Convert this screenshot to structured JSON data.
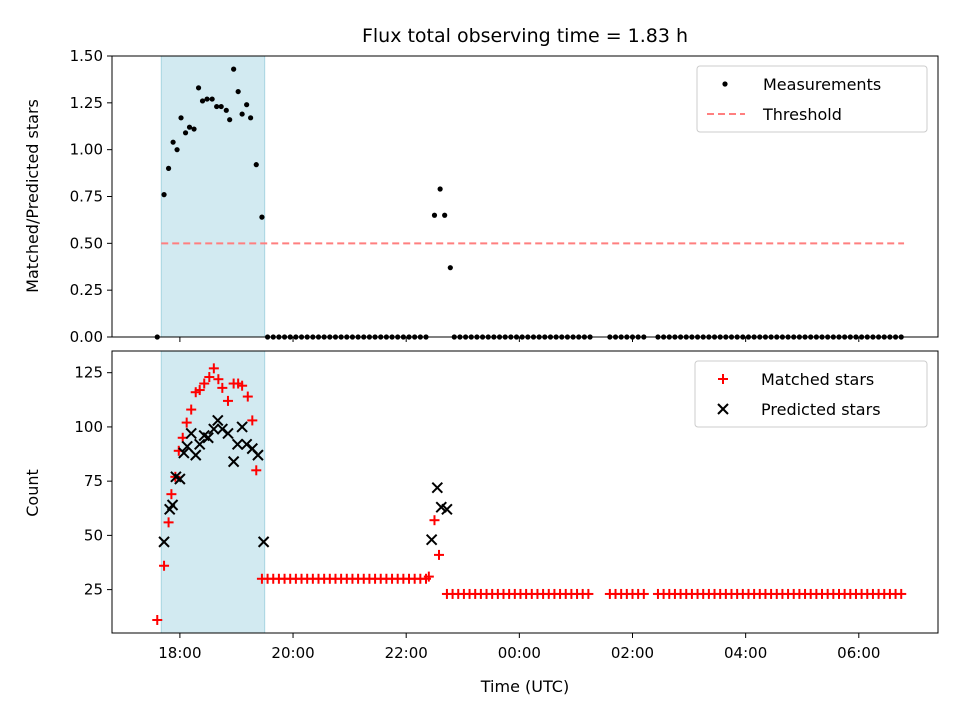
{
  "chart_data": [
    {
      "type": "scatter",
      "title": "Flux total observing time = 1.83 h",
      "xlabel": "",
      "ylabel": "Matched/Predicted stars",
      "ylim": [
        0,
        1.5
      ],
      "yticks": [
        "0.00",
        "0.25",
        "0.50",
        "0.75",
        "1.00",
        "1.25",
        "1.50"
      ],
      "xticks": [
        "18:00",
        "20:00",
        "22:00",
        "00:00",
        "02:00",
        "04:00",
        "06:00"
      ],
      "xlim_hours": [
        16.8,
        31.4
      ],
      "shaded_interval_hours": [
        17.67,
        19.5
      ],
      "shade_color": "#add8e6",
      "legend_position": "upper right",
      "legend": [
        {
          "label": "Measurements",
          "marker": "dot",
          "color": "#000000"
        },
        {
          "label": "Threshold",
          "marker": "dashed-line",
          "color": "#ff7f7f"
        }
      ],
      "threshold": {
        "value": 0.5,
        "x_range_hours": [
          17.67,
          30.8
        ],
        "color": "#ff7f7f"
      },
      "series": [
        {
          "name": "Measurements",
          "color": "#000000",
          "points": [
            [
              17.6,
              0.0
            ],
            [
              17.72,
              0.76
            ],
            [
              17.8,
              0.9
            ],
            [
              17.88,
              1.04
            ],
            [
              17.95,
              1.0
            ],
            [
              18.02,
              1.17
            ],
            [
              18.1,
              1.09
            ],
            [
              18.17,
              1.12
            ],
            [
              18.25,
              1.11
            ],
            [
              18.33,
              1.33
            ],
            [
              18.4,
              1.26
            ],
            [
              18.48,
              1.27
            ],
            [
              18.57,
              1.27
            ],
            [
              18.65,
              1.23
            ],
            [
              18.73,
              1.23
            ],
            [
              18.82,
              1.21
            ],
            [
              18.88,
              1.16
            ],
            [
              18.95,
              1.43
            ],
            [
              19.03,
              1.31
            ],
            [
              19.1,
              1.19
            ],
            [
              19.18,
              1.24
            ],
            [
              19.25,
              1.17
            ],
            [
              19.35,
              0.92
            ],
            [
              19.45,
              0.64
            ],
            [
              22.5,
              0.65
            ],
            [
              22.6,
              0.79
            ],
            [
              22.68,
              0.65
            ],
            [
              22.78,
              0.37
            ]
          ],
          "zero_ranges_hours": [
            [
              19.55,
              22.42
            ],
            [
              22.85,
              24.1
            ],
            [
              24.15,
              25.3
            ],
            [
              25.6,
              26.2
            ],
            [
              26.45,
              30.8
            ]
          ],
          "zero_step_hours": 0.1
        }
      ]
    },
    {
      "type": "scatter",
      "title": "",
      "xlabel": "Time (UTC)",
      "ylabel": "Count",
      "ylim": [
        5,
        135
      ],
      "yticks": [
        "25",
        "50",
        "75",
        "100",
        "125"
      ],
      "xticks": [
        "18:00",
        "20:00",
        "22:00",
        "00:00",
        "02:00",
        "04:00",
        "06:00"
      ],
      "xlim_hours": [
        16.8,
        31.4
      ],
      "shaded_interval_hours": [
        17.67,
        19.5
      ],
      "shade_color": "#add8e6",
      "legend_position": "upper right",
      "legend": [
        {
          "label": "Matched stars",
          "marker": "plus",
          "color": "#ff0000"
        },
        {
          "label": "Predicted stars",
          "marker": "x",
          "color": "#000000"
        }
      ],
      "series": [
        {
          "name": "Matched stars",
          "marker": "plus",
          "color": "#ff0000",
          "points": [
            [
              17.6,
              11
            ],
            [
              17.72,
              36
            ],
            [
              17.8,
              56
            ],
            [
              17.85,
              69
            ],
            [
              17.92,
              77
            ],
            [
              17.98,
              89
            ],
            [
              18.05,
              95
            ],
            [
              18.12,
              102
            ],
            [
              18.2,
              108
            ],
            [
              18.28,
              116
            ],
            [
              18.35,
              117
            ],
            [
              18.43,
              120
            ],
            [
              18.52,
              123
            ],
            [
              18.6,
              127
            ],
            [
              18.68,
              122
            ],
            [
              18.75,
              118
            ],
            [
              18.85,
              112
            ],
            [
              18.95,
              120
            ],
            [
              19.03,
              120
            ],
            [
              19.1,
              119
            ],
            [
              19.2,
              114
            ],
            [
              19.28,
              103
            ],
            [
              19.35,
              80
            ],
            [
              22.4,
              31
            ],
            [
              22.5,
              57
            ],
            [
              22.58,
              41
            ]
          ],
          "flat_ranges": [
            {
              "from_hours": 19.45,
              "to_hours": 22.35,
              "value": 30
            },
            {
              "from_hours": 22.72,
              "to_hours": 24.85,
              "value": 23
            },
            {
              "from_hours": 24.92,
              "to_hours": 25.3,
              "value": 23
            },
            {
              "from_hours": 25.6,
              "to_hours": 26.2,
              "value": 23
            },
            {
              "from_hours": 26.45,
              "to_hours": 30.8,
              "value": 23
            }
          ],
          "flat_step_hours": 0.1
        },
        {
          "name": "Predicted stars",
          "marker": "x",
          "color": "#000000",
          "points": [
            [
              17.72,
              47
            ],
            [
              17.82,
              62
            ],
            [
              17.87,
              64
            ],
            [
              17.93,
              77
            ],
            [
              18.0,
              76
            ],
            [
              18.07,
              88
            ],
            [
              18.13,
              91
            ],
            [
              18.2,
              97
            ],
            [
              18.28,
              87
            ],
            [
              18.35,
              92
            ],
            [
              18.43,
              96
            ],
            [
              18.5,
              95
            ],
            [
              18.6,
              99
            ],
            [
              18.67,
              103
            ],
            [
              18.75,
              99
            ],
            [
              18.85,
              97
            ],
            [
              18.95,
              84
            ],
            [
              19.02,
              92
            ],
            [
              19.1,
              100
            ],
            [
              19.18,
              92
            ],
            [
              19.28,
              90
            ],
            [
              19.38,
              87
            ],
            [
              19.48,
              47
            ],
            [
              22.45,
              48
            ],
            [
              22.55,
              72
            ],
            [
              22.62,
              63
            ],
            [
              22.72,
              62
            ]
          ]
        }
      ]
    }
  ]
}
